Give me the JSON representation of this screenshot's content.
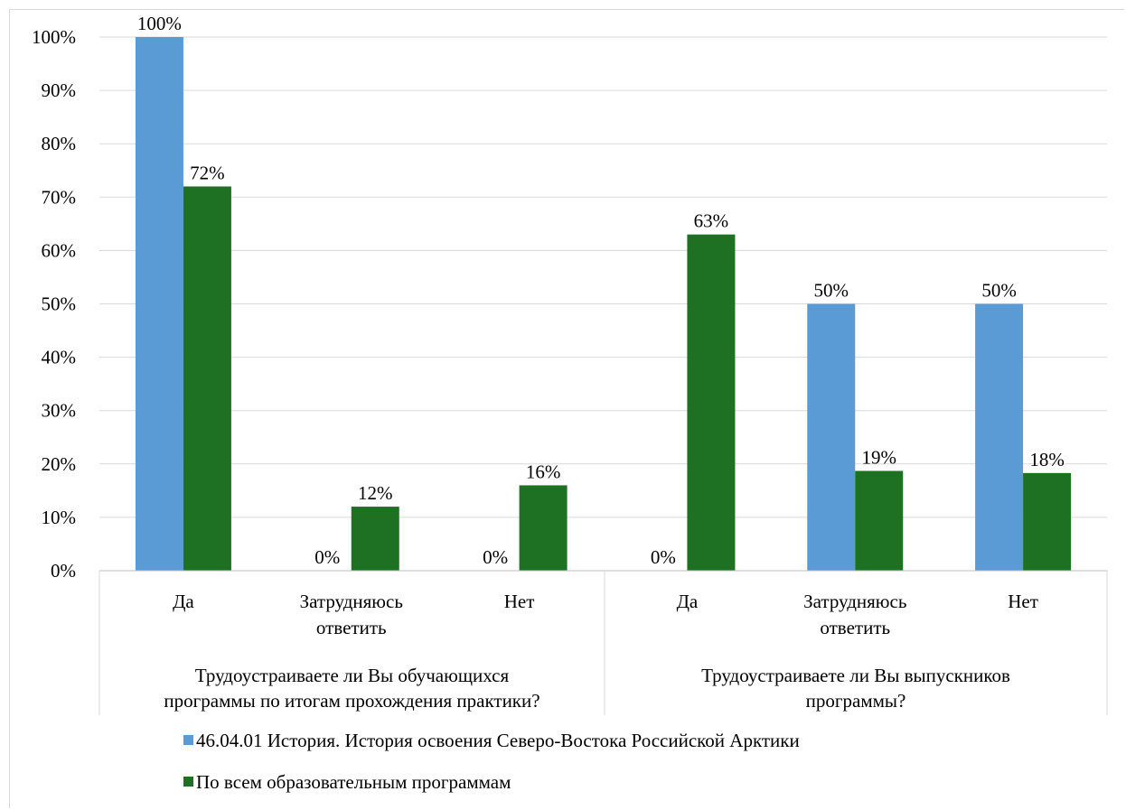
{
  "chart_data": {
    "type": "bar",
    "groups": [
      {
        "label_lines": [
          "Трудоустраиваете ли Вы обучающихся",
          "программы по итогам прохождения практики?"
        ],
        "categories": [
          {
            "label_lines": [
              "Да"
            ]
          },
          {
            "label_lines": [
              "Затрудняюсь",
              "ответить"
            ]
          },
          {
            "label_lines": [
              "Нет"
            ]
          }
        ]
      },
      {
        "label_lines": [
          "Трудоустраиваете ли Вы выпускников",
          "программы?"
        ],
        "categories": [
          {
            "label_lines": [
              "Да"
            ]
          },
          {
            "label_lines": [
              "Затрудняюсь",
              "ответить"
            ]
          },
          {
            "label_lines": [
              "Нет"
            ]
          }
        ]
      }
    ],
    "series": [
      {
        "name": "46.04.01 История. История освоения Северо-Востока Российской Арктики",
        "color": "#5b9bd5",
        "values": [
          100,
          0,
          0,
          0,
          50,
          50
        ],
        "labels": [
          "100%",
          "0%",
          "0%",
          "0%",
          "50%",
          "50%"
        ]
      },
      {
        "name": "По всем образовательным программам",
        "color": "#1e7122",
        "values": [
          72,
          12,
          16,
          63,
          18.7,
          18.3
        ],
        "labels": [
          "72%",
          "12%",
          "16%",
          "63%",
          "19%",
          "18%"
        ]
      }
    ],
    "y_ticks": [
      "0%",
      "10%",
      "20%",
      "30%",
      "40%",
      "50%",
      "60%",
      "70%",
      "80%",
      "90%",
      "100%"
    ],
    "ylim": [
      0,
      100
    ],
    "grid": true,
    "legend_position": "bottom"
  }
}
